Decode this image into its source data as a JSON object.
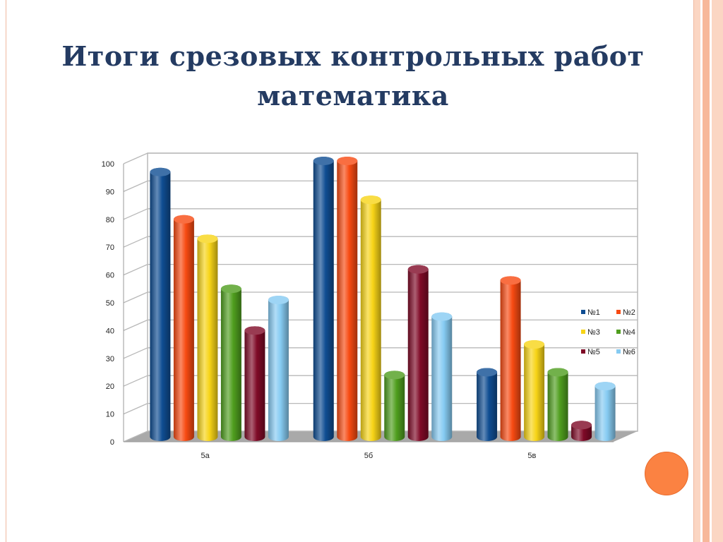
{
  "slide": {
    "title_line1": "Итоги срезовых контрольных работ",
    "title_line2": "математика"
  },
  "colors": {
    "title": "#243b62",
    "accent_circle": "#fb8242",
    "stripes": [
      "#fbd6c3",
      "#f7b89a",
      "#fbd6c3"
    ]
  },
  "chart_data": {
    "type": "bar",
    "title": "",
    "xlabel": "",
    "ylabel": "",
    "ylim": [
      0,
      100
    ],
    "yticks": [
      0,
      10,
      20,
      30,
      40,
      50,
      60,
      70,
      80,
      90,
      100
    ],
    "categories": [
      "5а",
      "5б",
      "5в"
    ],
    "series": [
      {
        "name": "№1",
        "color": "#0f4d92",
        "values": [
          96,
          100,
          24
        ]
      },
      {
        "name": "№2",
        "color": "#f74a12",
        "values": [
          79,
          100,
          57
        ]
      },
      {
        "name": "№3",
        "color": "#f7d417",
        "values": [
          72,
          86,
          34
        ]
      },
      {
        "name": "№4",
        "color": "#4f9e1e",
        "values": [
          54,
          23,
          24
        ]
      },
      {
        "name": "№5",
        "color": "#7f0a27",
        "values": [
          39,
          61,
          5
        ]
      },
      {
        "name": "№6",
        "color": "#86cbf2",
        "values": [
          50,
          44,
          19
        ]
      }
    ],
    "grid": true,
    "legend_position": "right"
  }
}
